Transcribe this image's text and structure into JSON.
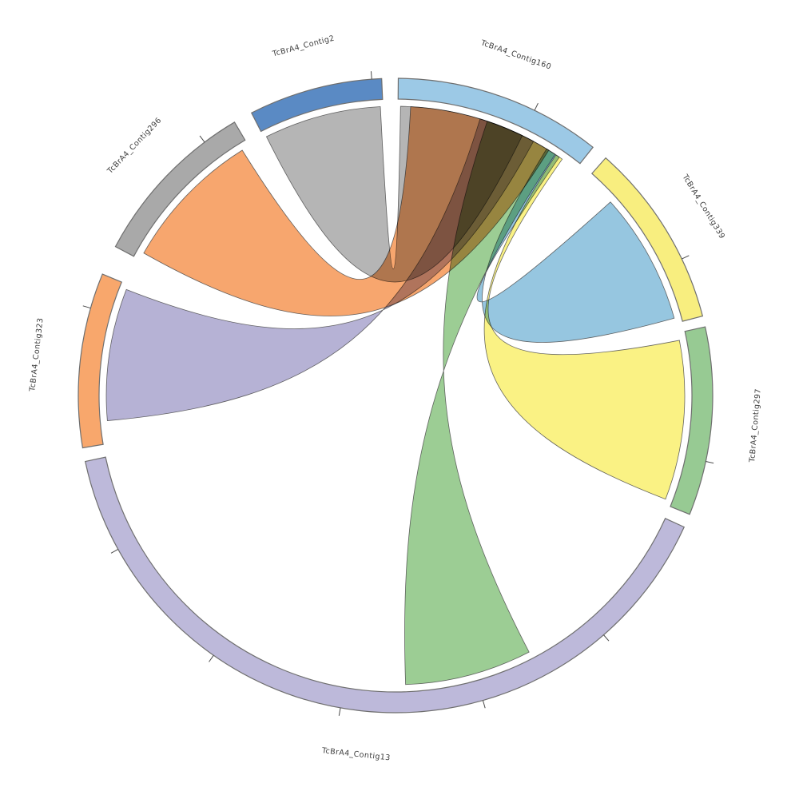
{
  "figure": {
    "title": "",
    "background": "#ffffff",
    "description": "Circular chord (synteny) diagram linking assembly contigs"
  },
  "chart_data": {
    "type": "chord",
    "legend_position": "none",
    "grid": false,
    "sectors": [
      {
        "id": "TcBrA4_Contig160",
        "label": "TcBrA4_Contig160",
        "start": 51.5,
        "end": 89.5,
        "color": "#9CC9E6",
        "ticks": [
          64
        ]
      },
      {
        "id": "TcBrA4_Contig2",
        "label": "TcBrA4_Contig2",
        "start": 92.5,
        "end": 117,
        "color": "#5A8AC4",
        "ticks": [
          94.3
        ]
      },
      {
        "id": "TcBrA4_Contig296",
        "label": "TcBrA4_Contig296",
        "start": 120.5,
        "end": 152,
        "color": "#A9A9A9",
        "ticks": [
          127
        ]
      },
      {
        "id": "TcBrA4_Contig323",
        "label": "TcBrA4_Contig323",
        "start": 157.5,
        "end": 189.5,
        "color": "#F8A76C",
        "ticks": [
          164
        ]
      },
      {
        "id": "TcBrA4_Contig13",
        "label": "TcBrA4_Contig13",
        "start": 192,
        "end": 335.5,
        "color": "#BDB9DA",
        "ticks": [
          209,
          235,
          260,
          286,
          311
        ]
      },
      {
        "id": "TcBrA4_Contig297",
        "label": "TcBrA4_Contig297",
        "start": 338,
        "end": 372.5,
        "color": "#97CA93",
        "ticks": [
          348
        ]
      },
      {
        "id": "TcBrA4_Contig339",
        "label": "TcBrA4_Contig339",
        "start": 14.5,
        "end": 48.5,
        "color": "#F8EE7F",
        "ticks": [
          25.5
        ]
      }
    ],
    "links": [
      {
        "source": "TcBrA4_Contig2",
        "s_range": [
          93,
          116.5
        ],
        "target": "TcBrA4_Contig160",
        "t_range": [
          64,
          89
        ],
        "color": "#B5B5B5",
        "crossed": false
      },
      {
        "source": "TcBrA4_Contig296",
        "s_range": [
          122,
          150.5
        ],
        "target": "TcBrA4_Contig160",
        "t_range": [
          58,
          87
        ],
        "color": "#F7A66E",
        "crossed": false
      },
      {
        "source": "TcBrA4_Contig323",
        "s_range": [
          158.5,
          185
        ],
        "target": "TcBrA4_Contig160",
        "t_range": [
          61.5,
          73
        ],
        "color": "#B6B2D5",
        "crossed": true
      },
      {
        "source": "TcBrA4_Contig13",
        "s_range": [
          272,
          297.5
        ],
        "target": "TcBrA4_Contig160",
        "t_range": [
          56.5,
          71.5
        ],
        "color": "#9CCD94",
        "crossed": true
      },
      {
        "source": "TcBrA4_Contig339",
        "s_range": [
          15.5,
          42
        ],
        "target": "TcBrA4_Contig160",
        "t_range": [
          55.5,
          58.5
        ],
        "color": "#96C6E0",
        "crossed": false
      },
      {
        "source": "TcBrA4_Contig297",
        "s_range": [
          339,
          371
        ],
        "target": "TcBrA4_Contig160",
        "t_range": [
          54.8,
          56.3
        ],
        "color": "#FAF284",
        "crossed": false
      }
    ]
  }
}
